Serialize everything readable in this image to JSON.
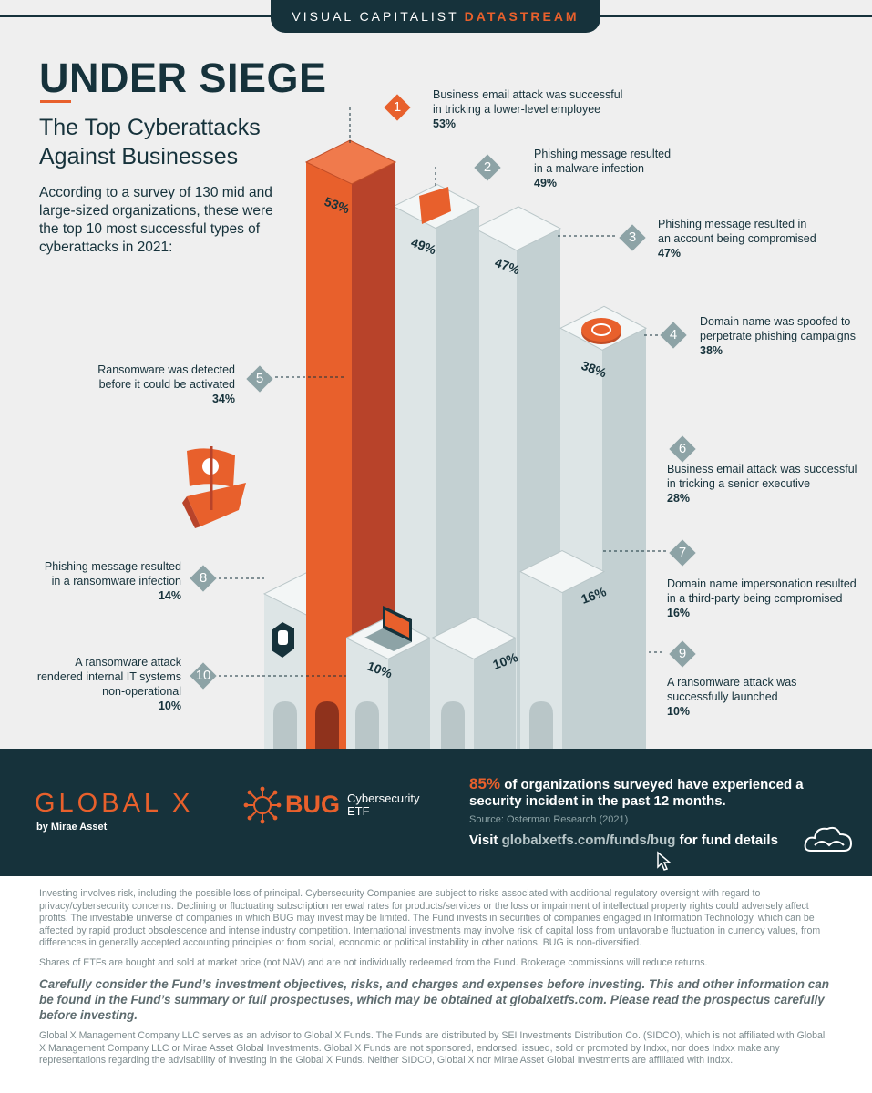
{
  "banner": {
    "part1": "VISUAL CAPITALIST",
    "part2": "DATASTREAM"
  },
  "title": "UNDER SIEGE",
  "subtitle_line1": "The Top Cyberattacks",
  "subtitle_line2": "Against Businesses",
  "intro": "According to a survey of 130 mid and large-sized organizations, these were the top 10 most successful types of cyberattacks in 2021:",
  "colors": {
    "accent": "#e8602c",
    "dark": "#16323b",
    "tower": "#d6e0e1",
    "badge": "#8da3a6"
  },
  "chart_data": {
    "type": "bar",
    "categories": [
      "Business email attack was successful in tricking a lower-level employee",
      "Phishing message resulted in a malware infection",
      "Phishing message resulted in an account being compromised",
      "Domain name was spoofed to perpetrate phishing campaigns",
      "Ransomware was detected before it could be activated",
      "Business email attack was successful in tricking a senior executive",
      "Domain name impersonation resulted in a third-party being compromised",
      "Phishing message resulted in a ransomware infection",
      "A ransomware attack was successfully launched",
      "A ransomware attack rendered internal IT systems non-operational"
    ],
    "values": [
      53,
      49,
      47,
      38,
      34,
      28,
      16,
      14,
      10,
      10
    ],
    "unit": "%",
    "ylim": [
      0,
      60
    ],
    "ranks": [
      "1",
      "2",
      "3",
      "4",
      "5",
      "6",
      "7",
      "8",
      "9",
      "10"
    ],
    "labels": [
      {
        "line1": "Business email attack was successful",
        "line2": "in tricking a lower-level employee",
        "line3": "",
        "pct": "53%"
      },
      {
        "line1": "Phishing message resulted",
        "line2": "in a malware infection",
        "line3": "",
        "pct": "49%"
      },
      {
        "line1": "Phishing message resulted in",
        "line2": "an account being compromised",
        "line3": "",
        "pct": "47%"
      },
      {
        "line1": "Domain name was spoofed to",
        "line2": "perpetrate phishing campaigns",
        "line3": "",
        "pct": "38%"
      },
      {
        "line1": "Ransomware was detected",
        "line2": "before it could be activated",
        "line3": "",
        "pct": "34%"
      },
      {
        "line1": "Business email attack was successful",
        "line2": "in tricking a senior executive",
        "line3": "",
        "pct": "28%"
      },
      {
        "line1": "Domain name impersonation resulted",
        "line2": "in a third-party being compromised",
        "line3": "",
        "pct": "16%"
      },
      {
        "line1": "Phishing message resulted",
        "line2": "in a ransomware infection",
        "line3": "",
        "pct": "14%"
      },
      {
        "line1": "A ransomware attack was",
        "line2": "successfully launched",
        "line3": "",
        "pct": "10%"
      },
      {
        "line1": "A ransomware attack",
        "line2": "rendered internal IT systems",
        "line3": "non-operational",
        "pct": "10%"
      }
    ],
    "grid": false,
    "legend": "none"
  },
  "footer_band": {
    "brand": "GLOBAL X",
    "brand_sub": "by Mirae Asset",
    "fund": "BUG",
    "fund_line1": "Cybersecurity",
    "fund_line2": "ETF",
    "stat_highlight": "85%",
    "stat_text": " of organizations surveyed have experienced a security incident in the past 12 months.",
    "source": "Source: Osterman Research (2021)",
    "visit_prefix": "Visit ",
    "visit_url": "globalxetfs.com/funds/bug",
    "visit_suffix": " for fund details"
  },
  "disclaimer": {
    "p1": "Investing involves risk, including the possible loss of principal. Cybersecurity Companies are subject to risks associated with additional regulatory oversight with regard to privacy/cybersecurity concerns. Declining or fluctuating subscription renewal rates for products/services or the loss or impairment of intellectual property rights could adversely affect profits. The investable universe of companies in which BUG may invest may be limited. The Fund invests in securities of companies engaged in Information Technology, which can be affected by rapid product obsolescence and intense industry competition. International investments may involve risk of capital loss from unfavorable fluctuation in currency values, from differences in generally accepted accounting principles or from social, economic or political instability in other nations. BUG is non-diversified.",
    "p2": "Shares of ETFs are bought and sold at market price (not NAV) and are not individually redeemed from the Fund. Brokerage commissions will reduce returns.",
    "p3": "Carefully consider the Fund’s investment objectives, risks, and charges and expenses before investing. This and other information can be found in the Fund’s summary or full prospectuses, which may be obtained at globalxetfs.com. Please read the prospectus carefully before investing.",
    "p4": "Global X Management Company LLC serves as an advisor to Global X Funds. The Funds are distributed by SEI Investments Distribution Co. (SIDCO), which is not affiliated with Global X Management Company LLC or Mirae Asset Global Investments. Global X Funds are not sponsored, endorsed, issued, sold or promoted by Indxx, nor does Indxx make any representations regarding the advisability of investing in the Global X Funds. Neither SIDCO, Global X nor Mirae Asset Global Investments are affiliated with Indxx."
  }
}
